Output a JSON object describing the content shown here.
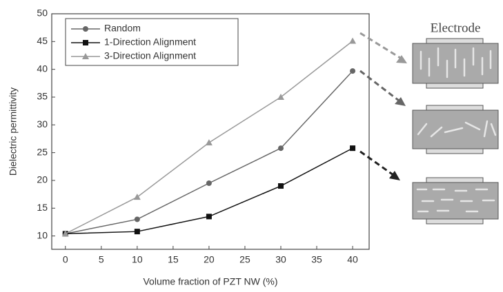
{
  "chart_data": {
    "type": "line",
    "x_label": "Volume fraction of PZT NW (%)",
    "y_label": "Dielectric permittivity",
    "x": [
      0,
      10,
      20,
      30,
      40
    ],
    "series": [
      {
        "name": "Random",
        "color": "#666666",
        "marker": "circle",
        "values": [
          10.4,
          13,
          19.5,
          25.8,
          39.7
        ]
      },
      {
        "name": "1-Direction Alignment",
        "color": "#111111",
        "marker": "square",
        "values": [
          10.4,
          10.8,
          13.5,
          19,
          25.8
        ]
      },
      {
        "name": "3-Direction Alignment",
        "color": "#999999",
        "marker": "triangle",
        "values": [
          10.4,
          17,
          26.8,
          35,
          45.1
        ]
      }
    ],
    "xlim": [
      -1.9,
      42.3
    ],
    "xticks": [
      0,
      5,
      10,
      15,
      20,
      25,
      30,
      35,
      40
    ],
    "ylim": [
      7.6,
      50
    ],
    "yticks": [
      10,
      15,
      20,
      25,
      30,
      35,
      40,
      45,
      50
    ],
    "legend": "upper-left",
    "annotations": [
      "Electrode"
    ]
  }
}
